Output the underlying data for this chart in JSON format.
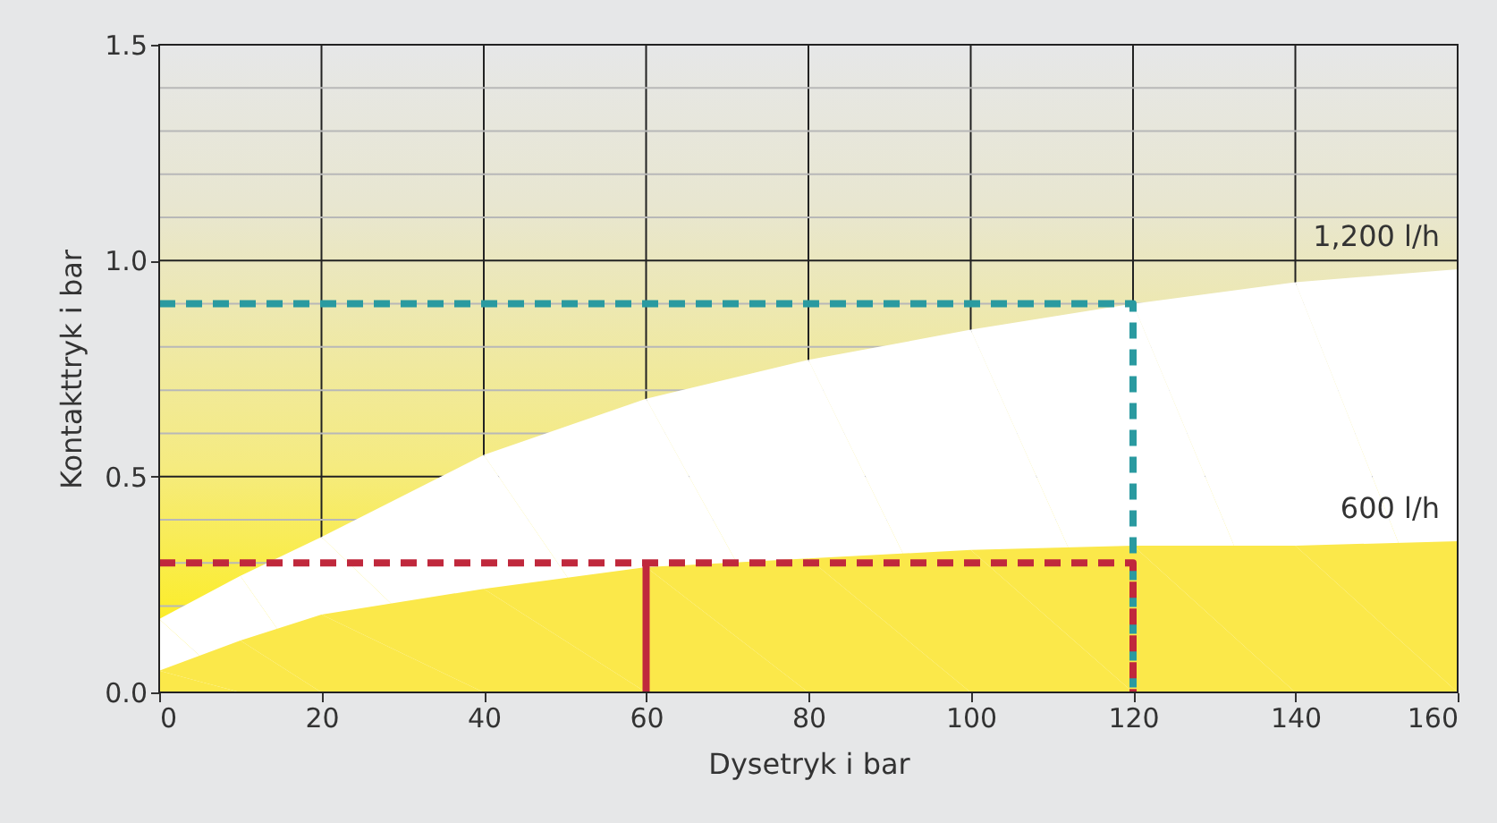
{
  "chart_data": {
    "type": "area",
    "xlabel": "Dysetryk i bar",
    "ylabel": "Kontakttryk i bar",
    "xlim": [
      0,
      160
    ],
    "ylim": [
      0,
      1.5
    ],
    "xticks": [
      0,
      20,
      40,
      60,
      80,
      100,
      120,
      140,
      160
    ],
    "yticks": [
      {
        "value": 0,
        "label": "0.0"
      },
      {
        "value": 0.1,
        "label": null
      },
      {
        "value": 0.2,
        "label": null
      },
      {
        "value": 0.3,
        "label": null
      },
      {
        "value": 0.4,
        "label": null
      },
      0.5,
      {
        "value": 0.6,
        "label": null
      },
      {
        "value": 0.7,
        "label": null
      },
      {
        "value": 0.8,
        "label": null
      },
      {
        "value": 0.9,
        "label": null
      },
      {
        "value": 1.0,
        "label": "1.0"
      },
      {
        "value": 1.1,
        "label": null
      },
      {
        "value": 1.2,
        "label": null
      },
      {
        "value": 1.3,
        "label": null
      },
      {
        "value": 1.4,
        "label": null
      },
      1.5
    ],
    "grid": true,
    "legend": false,
    "marker": "none",
    "series": [
      {
        "name": "1,200 l/h",
        "color": "#ffffff",
        "x": [
          0,
          10,
          20,
          40,
          60,
          80,
          100,
          120,
          140,
          160
        ],
        "values": [
          0.17,
          0.27,
          0.36,
          0.55,
          0.68,
          0.77,
          0.84,
          0.9,
          0.95,
          0.98
        ]
      },
      {
        "name": "600 l/h",
        "color": "#fbe84a",
        "x": [
          0,
          10,
          20,
          40,
          60,
          80,
          100,
          120,
          140,
          160
        ],
        "values": [
          0.05,
          0.12,
          0.18,
          0.24,
          0.29,
          0.31,
          0.33,
          0.34,
          0.34,
          0.35
        ]
      },
      {
        "type": "line",
        "color": "#2a9aa0",
        "line_style": "dashed",
        "x": [
          0,
          120,
          120
        ],
        "values": [
          0.9,
          0.9,
          0
        ]
      },
      {
        "type": "line",
        "color": "#c0283c",
        "line_style": "dashed",
        "x": [
          0,
          120,
          120
        ],
        "values": [
          0.3,
          0.3,
          0
        ]
      },
      {
        "type": "line",
        "color": "#c0283c",
        "line_style": "solid",
        "x": [
          60,
          60
        ],
        "values": [
          0,
          0.3
        ]
      }
    ]
  }
}
